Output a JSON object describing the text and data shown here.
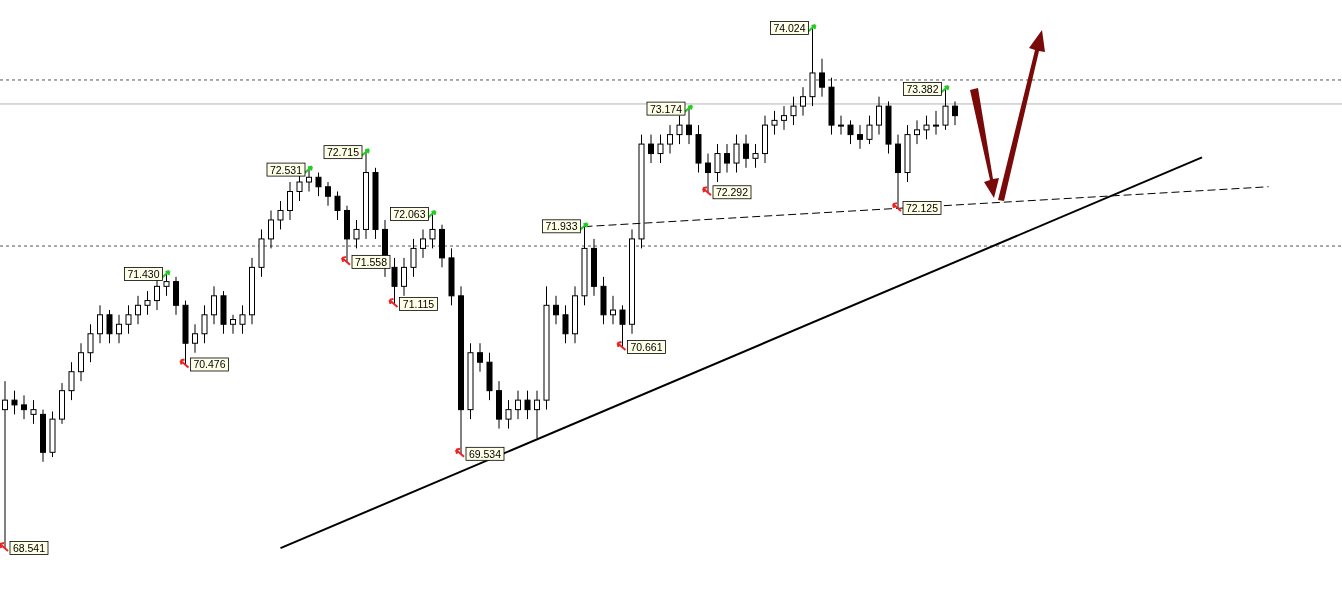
{
  "chart_data": {
    "type": "candlestick",
    "categories": [
      null,
      null,
      null,
      null,
      null,
      null,
      null,
      null,
      null,
      null,
      null,
      null,
      null,
      null,
      null,
      null,
      null,
      null,
      null,
      null,
      null,
      null,
      null,
      null,
      null,
      null,
      null,
      null,
      null,
      null,
      null,
      null,
      null,
      null,
      null,
      null,
      null,
      null,
      null,
      null,
      null,
      null,
      null,
      null,
      null,
      null,
      null,
      null,
      null,
      null,
      null,
      null,
      null,
      null,
      null,
      null,
      null,
      null,
      null,
      null,
      null,
      null,
      null,
      null,
      null,
      null,
      null,
      null,
      null,
      null,
      null,
      null,
      null,
      null,
      null,
      null,
      null,
      null,
      null,
      null,
      null,
      null,
      null,
      null,
      null,
      null,
      null,
      null,
      null,
      null,
      null,
      null,
      null,
      null,
      null,
      null,
      null,
      null,
      null,
      null,
      null,
      null,
      null,
      null,
      null,
      null,
      null,
      null,
      null,
      null,
      null,
      null,
      null,
      null,
      null,
      null,
      null,
      null,
      null,
      null,
      null,
      null,
      null,
      null,
      null,
      null,
      null,
      null,
      null,
      null,
      null,
      null,
      null,
      null
    ],
    "color": "#000000",
    "ohlc": [
      [
        70.0,
        70.3,
        68.541,
        70.1
      ],
      [
        70.1,
        70.2,
        69.95,
        70.05
      ],
      [
        70.05,
        70.15,
        69.9,
        70.0
      ],
      [
        69.95,
        70.1,
        69.85,
        70.0
      ],
      [
        69.95,
        70.0,
        69.45,
        69.55
      ],
      [
        69.55,
        69.98,
        69.5,
        69.9
      ],
      [
        69.9,
        70.28,
        69.85,
        70.2
      ],
      [
        70.2,
        70.5,
        70.1,
        70.4
      ],
      [
        70.4,
        70.7,
        70.3,
        70.6
      ],
      [
        70.6,
        70.9,
        70.5,
        70.8
      ],
      [
        70.8,
        71.1,
        70.7,
        71.0
      ],
      [
        71.0,
        71.05,
        70.7,
        70.8
      ],
      [
        70.8,
        71.0,
        70.7,
        70.9
      ],
      [
        70.9,
        71.1,
        70.8,
        71.0
      ],
      [
        71.0,
        71.2,
        70.9,
        71.1
      ],
      [
        71.1,
        71.25,
        71.0,
        71.15
      ],
      [
        71.15,
        71.38,
        71.05,
        71.3
      ],
      [
        71.3,
        71.43,
        71.2,
        71.35
      ],
      [
        71.35,
        71.4,
        71.0,
        71.1
      ],
      [
        71.1,
        71.15,
        70.476,
        70.7
      ],
      [
        70.7,
        70.9,
        70.6,
        70.8
      ],
      [
        70.8,
        71.1,
        70.7,
        71.0
      ],
      [
        71.0,
        71.3,
        70.9,
        71.2
      ],
      [
        71.2,
        71.25,
        70.8,
        70.9
      ],
      [
        70.9,
        71.0,
        70.8,
        70.95
      ],
      [
        70.9,
        71.1,
        70.8,
        71.0
      ],
      [
        71.0,
        71.6,
        70.9,
        71.5
      ],
      [
        71.5,
        71.9,
        71.4,
        71.8
      ],
      [
        71.8,
        72.1,
        71.7,
        72.0
      ],
      [
        72.0,
        72.2,
        71.9,
        72.1
      ],
      [
        72.1,
        72.4,
        72.0,
        72.3
      ],
      [
        72.3,
        72.48,
        72.2,
        72.4
      ],
      [
        72.4,
        72.531,
        72.3,
        72.45
      ],
      [
        72.45,
        72.5,
        72.25,
        72.35
      ],
      [
        72.35,
        72.4,
        72.15,
        72.25
      ],
      [
        72.25,
        72.3,
        72.0,
        72.1
      ],
      [
        72.1,
        72.15,
        71.558,
        71.8
      ],
      [
        71.8,
        72.0,
        71.7,
        71.9
      ],
      [
        71.9,
        72.715,
        71.8,
        72.5
      ],
      [
        72.5,
        72.55,
        71.8,
        71.9
      ],
      [
        71.9,
        72.0,
        71.4,
        71.5
      ],
      [
        71.5,
        71.6,
        71.115,
        71.3
      ],
      [
        71.3,
        71.6,
        71.2,
        71.5
      ],
      [
        71.5,
        71.8,
        71.4,
        71.7
      ],
      [
        71.7,
        71.9,
        71.6,
        71.8
      ],
      [
        71.8,
        72.063,
        71.7,
        71.9
      ],
      [
        71.9,
        71.95,
        71.5,
        71.6
      ],
      [
        71.6,
        71.7,
        71.1,
        71.2
      ],
      [
        71.2,
        71.3,
        69.534,
        70.0
      ],
      [
        70.0,
        70.7,
        69.9,
        70.6
      ],
      [
        70.6,
        70.7,
        70.4,
        70.5
      ],
      [
        70.5,
        70.6,
        70.1,
        70.2
      ],
      [
        70.2,
        70.3,
        69.8,
        69.9
      ],
      [
        69.9,
        70.1,
        69.8,
        70.0
      ],
      [
        70.0,
        70.2,
        69.9,
        70.1
      ],
      [
        70.1,
        70.2,
        69.9,
        70.0
      ],
      [
        70.0,
        70.2,
        69.7,
        70.1
      ],
      [
        70.1,
        71.3,
        70.0,
        71.1
      ],
      [
        71.1,
        71.2,
        70.9,
        71.0
      ],
      [
        71.0,
        71.1,
        70.7,
        70.8
      ],
      [
        70.8,
        71.3,
        70.7,
        71.2
      ],
      [
        71.2,
        71.933,
        71.1,
        71.7
      ],
      [
        71.7,
        71.8,
        71.2,
        71.3
      ],
      [
        71.3,
        71.4,
        70.9,
        71.0
      ],
      [
        71.0,
        71.2,
        70.9,
        71.05
      ],
      [
        71.05,
        71.1,
        70.661,
        70.9
      ],
      [
        70.9,
        71.9,
        70.8,
        71.8
      ],
      [
        71.8,
        72.9,
        71.7,
        72.8
      ],
      [
        72.8,
        72.9,
        72.6,
        72.7
      ],
      [
        72.7,
        72.9,
        72.6,
        72.8
      ],
      [
        72.8,
        73.0,
        72.7,
        72.9
      ],
      [
        72.9,
        73.1,
        72.8,
        73.0
      ],
      [
        73.0,
        73.174,
        72.8,
        72.9
      ],
      [
        72.9,
        73.0,
        72.5,
        72.6
      ],
      [
        72.6,
        72.7,
        72.292,
        72.5
      ],
      [
        72.5,
        72.8,
        72.4,
        72.7
      ],
      [
        72.7,
        72.8,
        72.5,
        72.6
      ],
      [
        72.6,
        72.9,
        72.5,
        72.8
      ],
      [
        72.8,
        72.9,
        72.55,
        72.65
      ],
      [
        72.65,
        72.8,
        72.55,
        72.7
      ],
      [
        72.7,
        73.1,
        72.6,
        73.0
      ],
      [
        73.0,
        73.15,
        72.9,
        73.05
      ],
      [
        73.05,
        73.2,
        72.95,
        73.1
      ],
      [
        73.1,
        73.3,
        73.0,
        73.2
      ],
      [
        73.2,
        73.4,
        73.1,
        73.3
      ],
      [
        73.3,
        74.024,
        73.2,
        73.55
      ],
      [
        73.55,
        73.7,
        73.3,
        73.4
      ],
      [
        73.4,
        73.5,
        72.9,
        73.0
      ],
      [
        73.0,
        73.1,
        72.9,
        73.0
      ],
      [
        73.0,
        73.05,
        72.8,
        72.9
      ],
      [
        72.9,
        73.0,
        72.75,
        72.85
      ],
      [
        72.85,
        73.1,
        72.8,
        73.0
      ],
      [
        73.0,
        73.3,
        72.9,
        73.2
      ],
      [
        73.2,
        73.25,
        72.7,
        72.8
      ],
      [
        72.8,
        72.9,
        72.125,
        72.5
      ],
      [
        72.5,
        73.0,
        72.4,
        72.9
      ],
      [
        72.9,
        73.05,
        72.8,
        72.95
      ],
      [
        72.95,
        73.1,
        72.85,
        73.0
      ],
      [
        73.0,
        73.15,
        72.9,
        73.0
      ],
      [
        73.0,
        73.382,
        72.95,
        73.2
      ],
      [
        73.2,
        73.25,
        73.0,
        73.1
      ],
      null,
      null,
      null,
      null,
      null,
      null,
      null,
      null,
      null,
      null,
      null,
      null,
      null,
      null,
      null,
      null,
      null,
      null,
      null,
      null,
      null,
      null,
      null,
      null,
      null,
      null,
      null,
      null,
      null,
      null,
      null,
      null,
      null
    ],
    "series": [
      {
        "type": "line",
        "values": [
          null,
          null,
          null,
          null,
          null,
          null,
          null,
          null,
          null,
          null,
          null,
          null,
          null,
          null,
          null,
          null,
          null,
          null,
          null,
          null,
          null,
          null,
          null,
          null,
          null,
          null,
          null,
          null,
          null,
          68.54,
          null,
          null,
          null,
          null,
          null,
          null,
          null,
          null,
          null,
          null,
          null,
          null,
          null,
          null,
          null,
          null,
          null,
          null,
          null,
          null,
          null,
          null,
          null,
          null,
          null,
          null,
          null,
          null,
          null,
          null,
          null,
          null,
          null,
          null,
          null,
          null,
          null,
          null,
          null,
          null,
          null,
          null,
          null,
          null,
          null,
          null,
          null,
          null,
          null,
          null,
          null,
          null,
          null,
          null,
          null,
          null,
          null,
          null,
          null,
          null,
          null,
          null,
          null,
          null,
          null,
          null,
          null,
          null,
          null,
          null,
          null,
          null,
          null,
          null,
          null,
          null,
          null,
          null,
          null,
          null,
          null,
          null,
          null,
          null,
          null,
          null,
          null,
          null,
          null,
          null,
          null,
          null,
          null,
          null,
          null,
          null,
          72.66,
          null,
          null,
          null,
          null,
          null,
          null,
          null
        ],
        "color": "#000000",
        "line_style": "solid"
      },
      {
        "type": "line",
        "values": [
          null,
          null,
          null,
          null,
          null,
          null,
          null,
          null,
          null,
          null,
          null,
          null,
          null,
          null,
          null,
          null,
          null,
          null,
          null,
          null,
          null,
          null,
          null,
          null,
          null,
          null,
          null,
          null,
          null,
          null,
          null,
          null,
          null,
          null,
          null,
          null,
          null,
          null,
          null,
          null,
          null,
          null,
          null,
          null,
          null,
          null,
          null,
          null,
          null,
          null,
          null,
          null,
          null,
          null,
          null,
          null,
          null,
          null,
          null,
          null,
          null,
          71.93,
          null,
          null,
          null,
          null,
          null,
          null,
          null,
          null,
          null,
          null,
          null,
          null,
          null,
          null,
          null,
          null,
          null,
          null,
          null,
          null,
          null,
          null,
          null,
          null,
          null,
          null,
          null,
          null,
          null,
          null,
          null,
          null,
          null,
          null,
          null,
          null,
          null,
          null,
          null,
          null,
          null,
          null,
          null,
          null,
          null,
          null,
          null,
          null,
          null,
          null,
          null,
          null,
          null,
          null,
          null,
          null,
          null,
          null,
          null,
          null,
          null,
          null,
          null,
          null,
          null,
          null,
          null,
          null,
          null,
          null,
          null,
          72.35
        ],
        "color": "#000000",
        "line_style": "dashed"
      }
    ],
    "ref_lines": [
      {
        "axis": "y",
        "value": 73.476,
        "color": "#555555",
        "line_style": "dotted"
      },
      {
        "axis": "y",
        "value": 73.223,
        "color": "#b4b4b4",
        "line_style": "solid"
      },
      {
        "axis": "y",
        "value": 71.725,
        "color": "#555555",
        "line_style": "dotted"
      }
    ],
    "annotations": [
      {
        "text": "74.024",
        "y": 74.024
      },
      {
        "text": "73.382",
        "y": 73.382
      },
      {
        "text": "73.174",
        "y": 73.174
      },
      {
        "text": "72.715",
        "y": 72.715
      },
      {
        "text": "72.531",
        "y": 72.531
      },
      {
        "text": "72.292",
        "y": 72.292
      },
      {
        "text": "72.125",
        "y": 72.125
      },
      {
        "text": "72.063",
        "y": 72.063
      },
      {
        "text": "71.933",
        "y": 71.933
      },
      {
        "text": "71.558",
        "y": 71.558
      },
      {
        "text": "71.430",
        "y": 71.43
      },
      {
        "text": "71.115",
        "y": 71.115
      },
      {
        "text": "70.661",
        "y": 70.661
      },
      {
        "text": "70.476",
        "y": 70.476
      },
      {
        "text": "69.534",
        "y": 69.534
      },
      {
        "text": "68.541",
        "y": 68.541
      }
    ]
  }
}
